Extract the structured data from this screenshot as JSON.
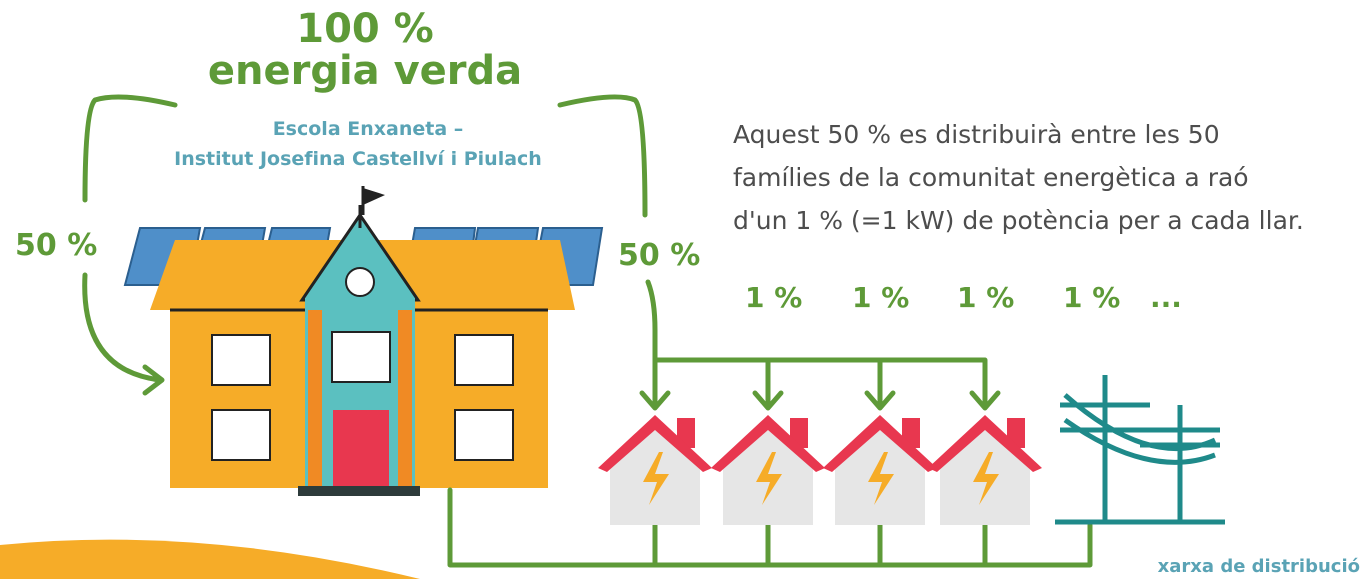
{
  "title": {
    "line1": "100 %",
    "line2": "energia verda"
  },
  "school": {
    "line1": "Escola Enxaneta –",
    "line2": "Institut Josefina Castellví i Piulach"
  },
  "shares": {
    "left": "50 %",
    "right": "50 %"
  },
  "description": {
    "lines": [
      "Aquest 50 % es distribuirà entre les 50",
      "famílies de la comunitat energètica a raó",
      "d'un 1 % (=1 kW) de potència per a cada llar."
    ]
  },
  "households": {
    "labels": [
      "1 %",
      "1 %",
      "1 %",
      "1 %"
    ],
    "more": "..."
  },
  "grid": {
    "label": "xarxa de distribució"
  }
}
